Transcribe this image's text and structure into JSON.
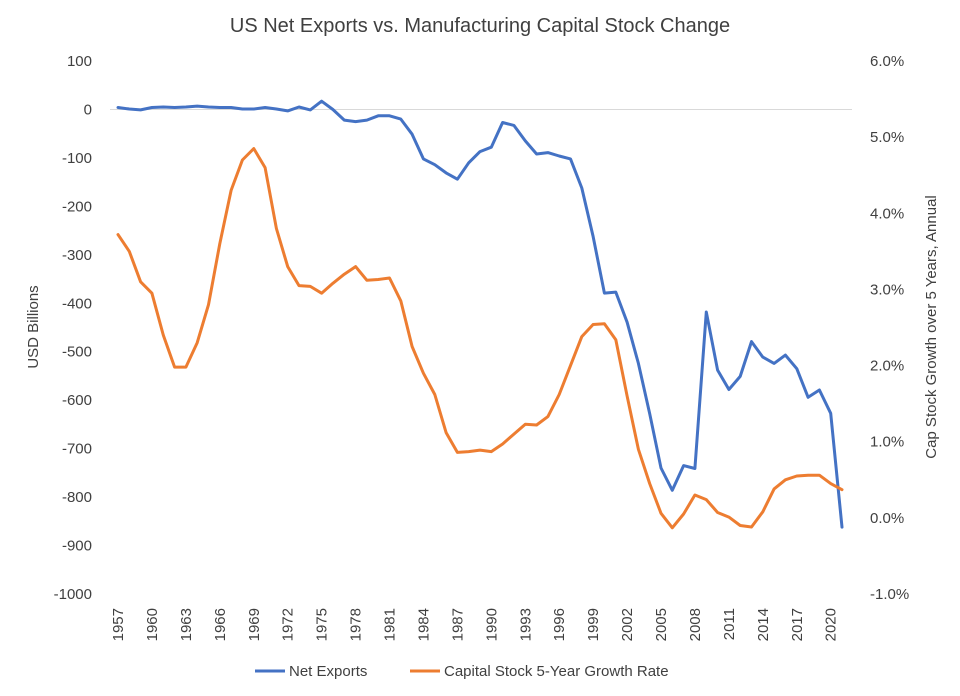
{
  "chart_data": {
    "type": "line",
    "title": "US Net Exports vs. Manufacturing Capital Stock Change",
    "ylabel": "USD Billions",
    "y2label": "Cap Stock Growth over 5 Years, Annual",
    "ylim": [
      -1000,
      100
    ],
    "y2lim": [
      -1.0,
      6.0
    ],
    "y_ticks": [
      "100",
      "0",
      "-100",
      "-200",
      "-300",
      "-400",
      "-500",
      "-600",
      "-700",
      "-800",
      "-900",
      "-1000"
    ],
    "y2_ticks": [
      "6.0%",
      "5.0%",
      "4.0%",
      "3.0%",
      "2.0%",
      "1.0%",
      "0.0%",
      "-1.0%"
    ],
    "x_ticks": [
      "1957",
      "1960",
      "1963",
      "1966",
      "1969",
      "1972",
      "1975",
      "1978",
      "1981",
      "1984",
      "1987",
      "1990",
      "1993",
      "1996",
      "1999",
      "2002",
      "2005",
      "2008",
      "2011",
      "2014",
      "2017",
      "2020"
    ],
    "x": [
      1957,
      1958,
      1959,
      1960,
      1961,
      1962,
      1963,
      1964,
      1965,
      1966,
      1967,
      1968,
      1969,
      1970,
      1971,
      1972,
      1973,
      1974,
      1975,
      1976,
      1977,
      1978,
      1979,
      1980,
      1981,
      1982,
      1983,
      1984,
      1985,
      1986,
      1987,
      1988,
      1989,
      1990,
      1991,
      1992,
      1993,
      1994,
      1995,
      1996,
      1997,
      1998,
      1999,
      2000,
      2001,
      2002,
      2003,
      2004,
      2005,
      2006,
      2007,
      2008,
      2009,
      2010,
      2011,
      2012,
      2013,
      2014,
      2015,
      2016,
      2017,
      2018,
      2019,
      2020,
      2021
    ],
    "series": [
      {
        "name": "Net Exports",
        "color": "#4472c4",
        "axis": "left",
        "values": [
          4,
          1,
          -1,
          4,
          5,
          4,
          5,
          7,
          5,
          4,
          4,
          1,
          1,
          4,
          1,
          -3,
          5,
          -1,
          17,
          0,
          -22,
          -25,
          -22,
          -13,
          -13,
          -20,
          -51,
          -102,
          -114,
          -131,
          -144,
          -110,
          -87,
          -78,
          -27,
          -33,
          -65,
          -92,
          -89,
          -96,
          -102,
          -162,
          -262,
          -379,
          -377,
          -439,
          -524,
          -628,
          -740,
          -786,
          -735,
          -741,
          -418,
          -538,
          -578,
          -551,
          -479,
          -511,
          -524,
          -507,
          -535,
          -594,
          -579,
          -627,
          -862
        ]
      },
      {
        "name": "Capital Stock 5-Year Growth Rate",
        "color": "#ed7d31",
        "axis": "right",
        "values": [
          3.72,
          3.5,
          3.1,
          2.95,
          2.4,
          1.98,
          1.98,
          2.3,
          2.8,
          3.6,
          4.3,
          4.7,
          4.85,
          4.6,
          3.8,
          3.3,
          3.05,
          3.04,
          2.95,
          3.08,
          3.2,
          3.3,
          3.12,
          3.13,
          3.15,
          2.85,
          2.25,
          1.9,
          1.62,
          1.12,
          0.86,
          0.87,
          0.89,
          0.87,
          0.97,
          1.1,
          1.23,
          1.22,
          1.33,
          1.62,
          2.0,
          2.38,
          2.54,
          2.55,
          2.34,
          1.6,
          0.9,
          0.45,
          0.06,
          -0.13,
          0.05,
          0.3,
          0.24,
          0.07,
          0.01,
          -0.1,
          -0.12,
          0.08,
          0.38,
          0.5,
          0.55,
          0.56,
          0.56,
          0.45,
          0.37
        ]
      }
    ],
    "legend_position": "bottom",
    "grid": false
  }
}
